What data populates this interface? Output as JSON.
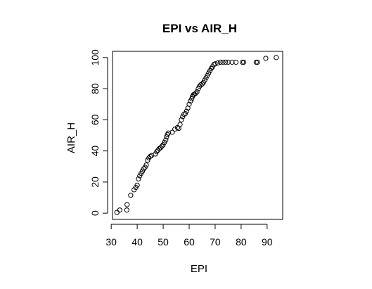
{
  "chart_data": {
    "type": "scatter",
    "title": "EPI vs AIR_H",
    "xlabel": "EPI",
    "ylabel": "AIR_H",
    "xlim": [
      30.5,
      96
    ],
    "ylim": [
      -4,
      104
    ],
    "xticks": [
      30,
      40,
      50,
      60,
      70,
      80,
      90
    ],
    "yticks": [
      0,
      20,
      40,
      60,
      80,
      100
    ],
    "grid": false,
    "marker": "open-circle",
    "points": [
      [
        32.2,
        0.5
      ],
      [
        33.3,
        2.0
      ],
      [
        36.0,
        2.0
      ],
      [
        36.1,
        5.5
      ],
      [
        37.5,
        11.5
      ],
      [
        38.8,
        15.0
      ],
      [
        39.5,
        16.5
      ],
      [
        40.0,
        18.0
      ],
      [
        40.5,
        22.0
      ],
      [
        41.0,
        24.0
      ],
      [
        41.5,
        25.5
      ],
      [
        42.0,
        27.0
      ],
      [
        42.5,
        28.5
      ],
      [
        43.0,
        29.5
      ],
      [
        43.5,
        31.0
      ],
      [
        44.0,
        34.0
      ],
      [
        44.5,
        35.5
      ],
      [
        45.0,
        36.5
      ],
      [
        45.5,
        37.0
      ],
      [
        47.0,
        38.0
      ],
      [
        47.5,
        39.5
      ],
      [
        48.0,
        40.5
      ],
      [
        48.5,
        41.5
      ],
      [
        49.0,
        42.0
      ],
      [
        49.5,
        43.0
      ],
      [
        50.0,
        44.0
      ],
      [
        50.5,
        45.5
      ],
      [
        51.0,
        47.0
      ],
      [
        51.3,
        49.0
      ],
      [
        51.6,
        50.5
      ],
      [
        52.0,
        51.5
      ],
      [
        53.5,
        52.0
      ],
      [
        54.5,
        54.0
      ],
      [
        55.5,
        55.0
      ],
      [
        56.0,
        54.5
      ],
      [
        56.5,
        57.0
      ],
      [
        57.0,
        60.0
      ],
      [
        57.5,
        62.0
      ],
      [
        58.0,
        63.5
      ],
      [
        58.5,
        64.0
      ],
      [
        59.0,
        65.5
      ],
      [
        59.5,
        67.5
      ],
      [
        60.0,
        70.0
      ],
      [
        60.5,
        72.0
      ],
      [
        61.0,
        73.5
      ],
      [
        61.3,
        75.0
      ],
      [
        61.6,
        76.0
      ],
      [
        62.0,
        76.5
      ],
      [
        62.5,
        77.0
      ],
      [
        63.0,
        78.0
      ],
      [
        63.5,
        80.0
      ],
      [
        64.0,
        81.5
      ],
      [
        64.5,
        82.5
      ],
      [
        65.0,
        83.0
      ],
      [
        65.5,
        84.0
      ],
      [
        66.0,
        85.5
      ],
      [
        66.5,
        87.0
      ],
      [
        67.0,
        88.5
      ],
      [
        67.5,
        90.0
      ],
      [
        68.0,
        91.5
      ],
      [
        68.5,
        93.0
      ],
      [
        69.0,
        94.0
      ],
      [
        69.5,
        95.5
      ],
      [
        70.0,
        96.0
      ],
      [
        71.0,
        96.5
      ],
      [
        72.0,
        97.0
      ],
      [
        73.0,
        97.0
      ],
      [
        74.0,
        97.0
      ],
      [
        75.0,
        97.0
      ],
      [
        76.5,
        97.0
      ],
      [
        78.0,
        97.0
      ],
      [
        80.5,
        97.0
      ],
      [
        81.0,
        97.0
      ],
      [
        85.8,
        97.0
      ],
      [
        86.3,
        97.0
      ],
      [
        89.5,
        99.5
      ],
      [
        93.5,
        100.0
      ]
    ]
  }
}
